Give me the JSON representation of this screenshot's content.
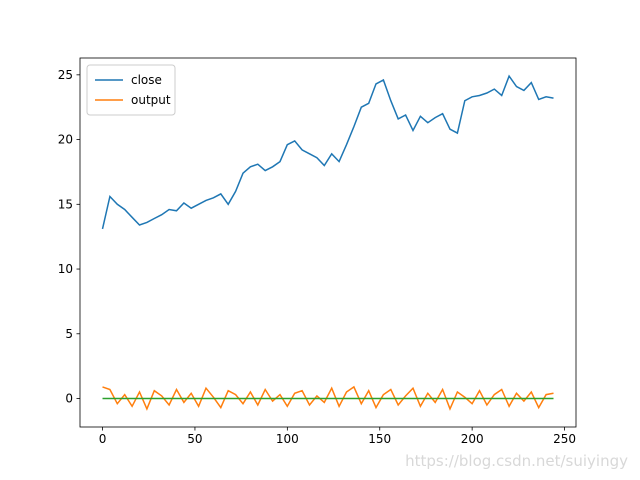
{
  "chart_data": {
    "type": "line",
    "x": [
      0,
      4,
      8,
      12,
      16,
      20,
      24,
      28,
      32,
      36,
      40,
      44,
      48,
      52,
      56,
      60,
      64,
      68,
      72,
      76,
      80,
      84,
      88,
      92,
      96,
      100,
      104,
      108,
      112,
      116,
      120,
      124,
      128,
      132,
      136,
      140,
      144,
      148,
      152,
      156,
      160,
      164,
      168,
      172,
      176,
      180,
      184,
      188,
      192,
      196,
      200,
      204,
      208,
      212,
      216,
      220,
      224,
      228,
      232,
      236,
      240,
      244
    ],
    "series": [
      {
        "name": "close",
        "color": "#1f77b4",
        "values": [
          13.1,
          15.6,
          15.0,
          14.6,
          14.0,
          13.4,
          13.6,
          13.9,
          14.2,
          14.6,
          14.5,
          15.1,
          14.7,
          15.0,
          15.3,
          15.5,
          15.8,
          15.0,
          16.0,
          17.4,
          17.9,
          18.1,
          17.6,
          17.9,
          18.3,
          19.6,
          19.9,
          19.2,
          18.9,
          18.6,
          18.0,
          18.9,
          18.3,
          19.6,
          21.0,
          22.5,
          22.8,
          24.3,
          24.6,
          23.0,
          21.6,
          21.9,
          20.7,
          21.8,
          21.3,
          21.7,
          22.0,
          20.8,
          20.5,
          23.0,
          23.3,
          23.4,
          23.6,
          23.9,
          23.4,
          24.9,
          24.1,
          23.8,
          24.4,
          23.1,
          23.3,
          23.2
        ]
      },
      {
        "name": "output",
        "color": "#ff7f0e",
        "values": [
          0.9,
          0.7,
          -0.4,
          0.3,
          -0.6,
          0.5,
          -0.8,
          0.6,
          0.2,
          -0.5,
          0.7,
          -0.3,
          0.4,
          -0.6,
          0.8,
          0.1,
          -0.7,
          0.6,
          0.3,
          -0.4,
          0.5,
          -0.5,
          0.7,
          -0.2,
          0.3,
          -0.6,
          0.4,
          0.6,
          -0.5,
          0.2,
          -0.3,
          0.8,
          -0.6,
          0.5,
          0.9,
          -0.4,
          0.6,
          -0.7,
          0.3,
          0.7,
          -0.5,
          0.2,
          0.8,
          -0.6,
          0.4,
          -0.3,
          0.7,
          -0.8,
          0.5,
          0.1,
          -0.4,
          0.6,
          -0.5,
          0.3,
          0.7,
          -0.6,
          0.4,
          -0.2,
          0.5,
          -0.7,
          0.3,
          0.4
        ]
      },
      {
        "color": "#2ca02c",
        "x": [
          0,
          244
        ],
        "values": [
          0,
          0
        ]
      }
    ],
    "xlim": [
      -12.2,
      256.2
    ],
    "xticks": [
      0,
      50,
      100,
      150,
      200,
      250
    ],
    "ylim": [
      -2.2,
      26.3
    ],
    "yticks": [
      0,
      5,
      10,
      15,
      20,
      25
    ],
    "legend": "upper left",
    "watermark": "https://blog.csdn.net/suiyingy"
  }
}
